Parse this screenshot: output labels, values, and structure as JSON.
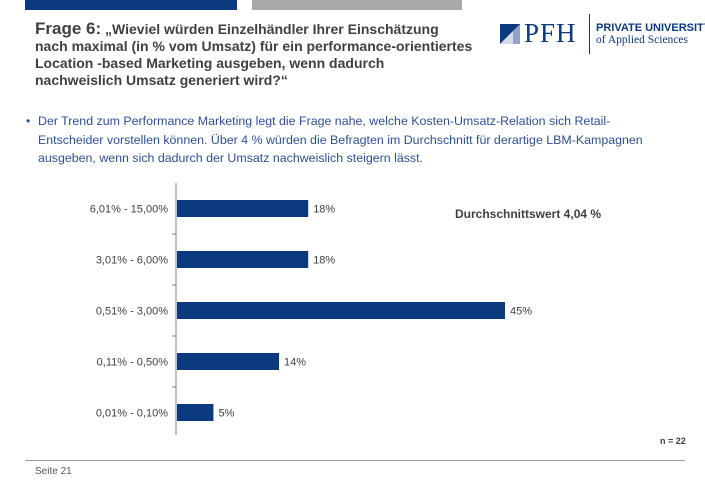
{
  "header": {
    "title_prefix": "Frage 6:",
    "title_text": "„Wieviel würden Einzelhändler Ihrer Einschätzung nach maximal (in % vom Umsatz) für ein performance-orientiertes Location -based Marketing ausgeben, wenn dadurch nachweislich Umsatz generiert wird?“"
  },
  "logo": {
    "mark": "PFH",
    "line1": "PRIVATE UNIVERSITY",
    "line2": "of Applied Sciences"
  },
  "bullet": {
    "symbol": "•",
    "text": "Der Trend zum Performance Marketing legt die Frage nahe, welche Kosten-Umsatz-Relation sich Retail-Entscheider vorstellen können. Über 4 % würden die Befragten im Durchschnitt für derartige LBM-Kampagnen ausgeben, wenn sich dadurch der Umsatz nachweislich steigern lässt."
  },
  "chart_data": {
    "type": "bar",
    "orientation": "horizontal",
    "categories": [
      "6,01% - 15,00%",
      "3,01% - 6,00%",
      "0,51% - 3,00%",
      "0,11% - 0,50%",
      "0,01% - 0,10%"
    ],
    "values": [
      18,
      18,
      45,
      14,
      5
    ],
    "value_labels": [
      "18%",
      "18%",
      "45%",
      "14%",
      "5%"
    ],
    "unit": "%",
    "xlim": [
      0,
      45
    ],
    "annotation": "Durchschnittswert 4,04 %",
    "bar_color": "#0b3a7e",
    "grid": false,
    "legend": "none"
  },
  "sample_size": "n = 22",
  "footer": {
    "page_label": "Seite 21"
  }
}
